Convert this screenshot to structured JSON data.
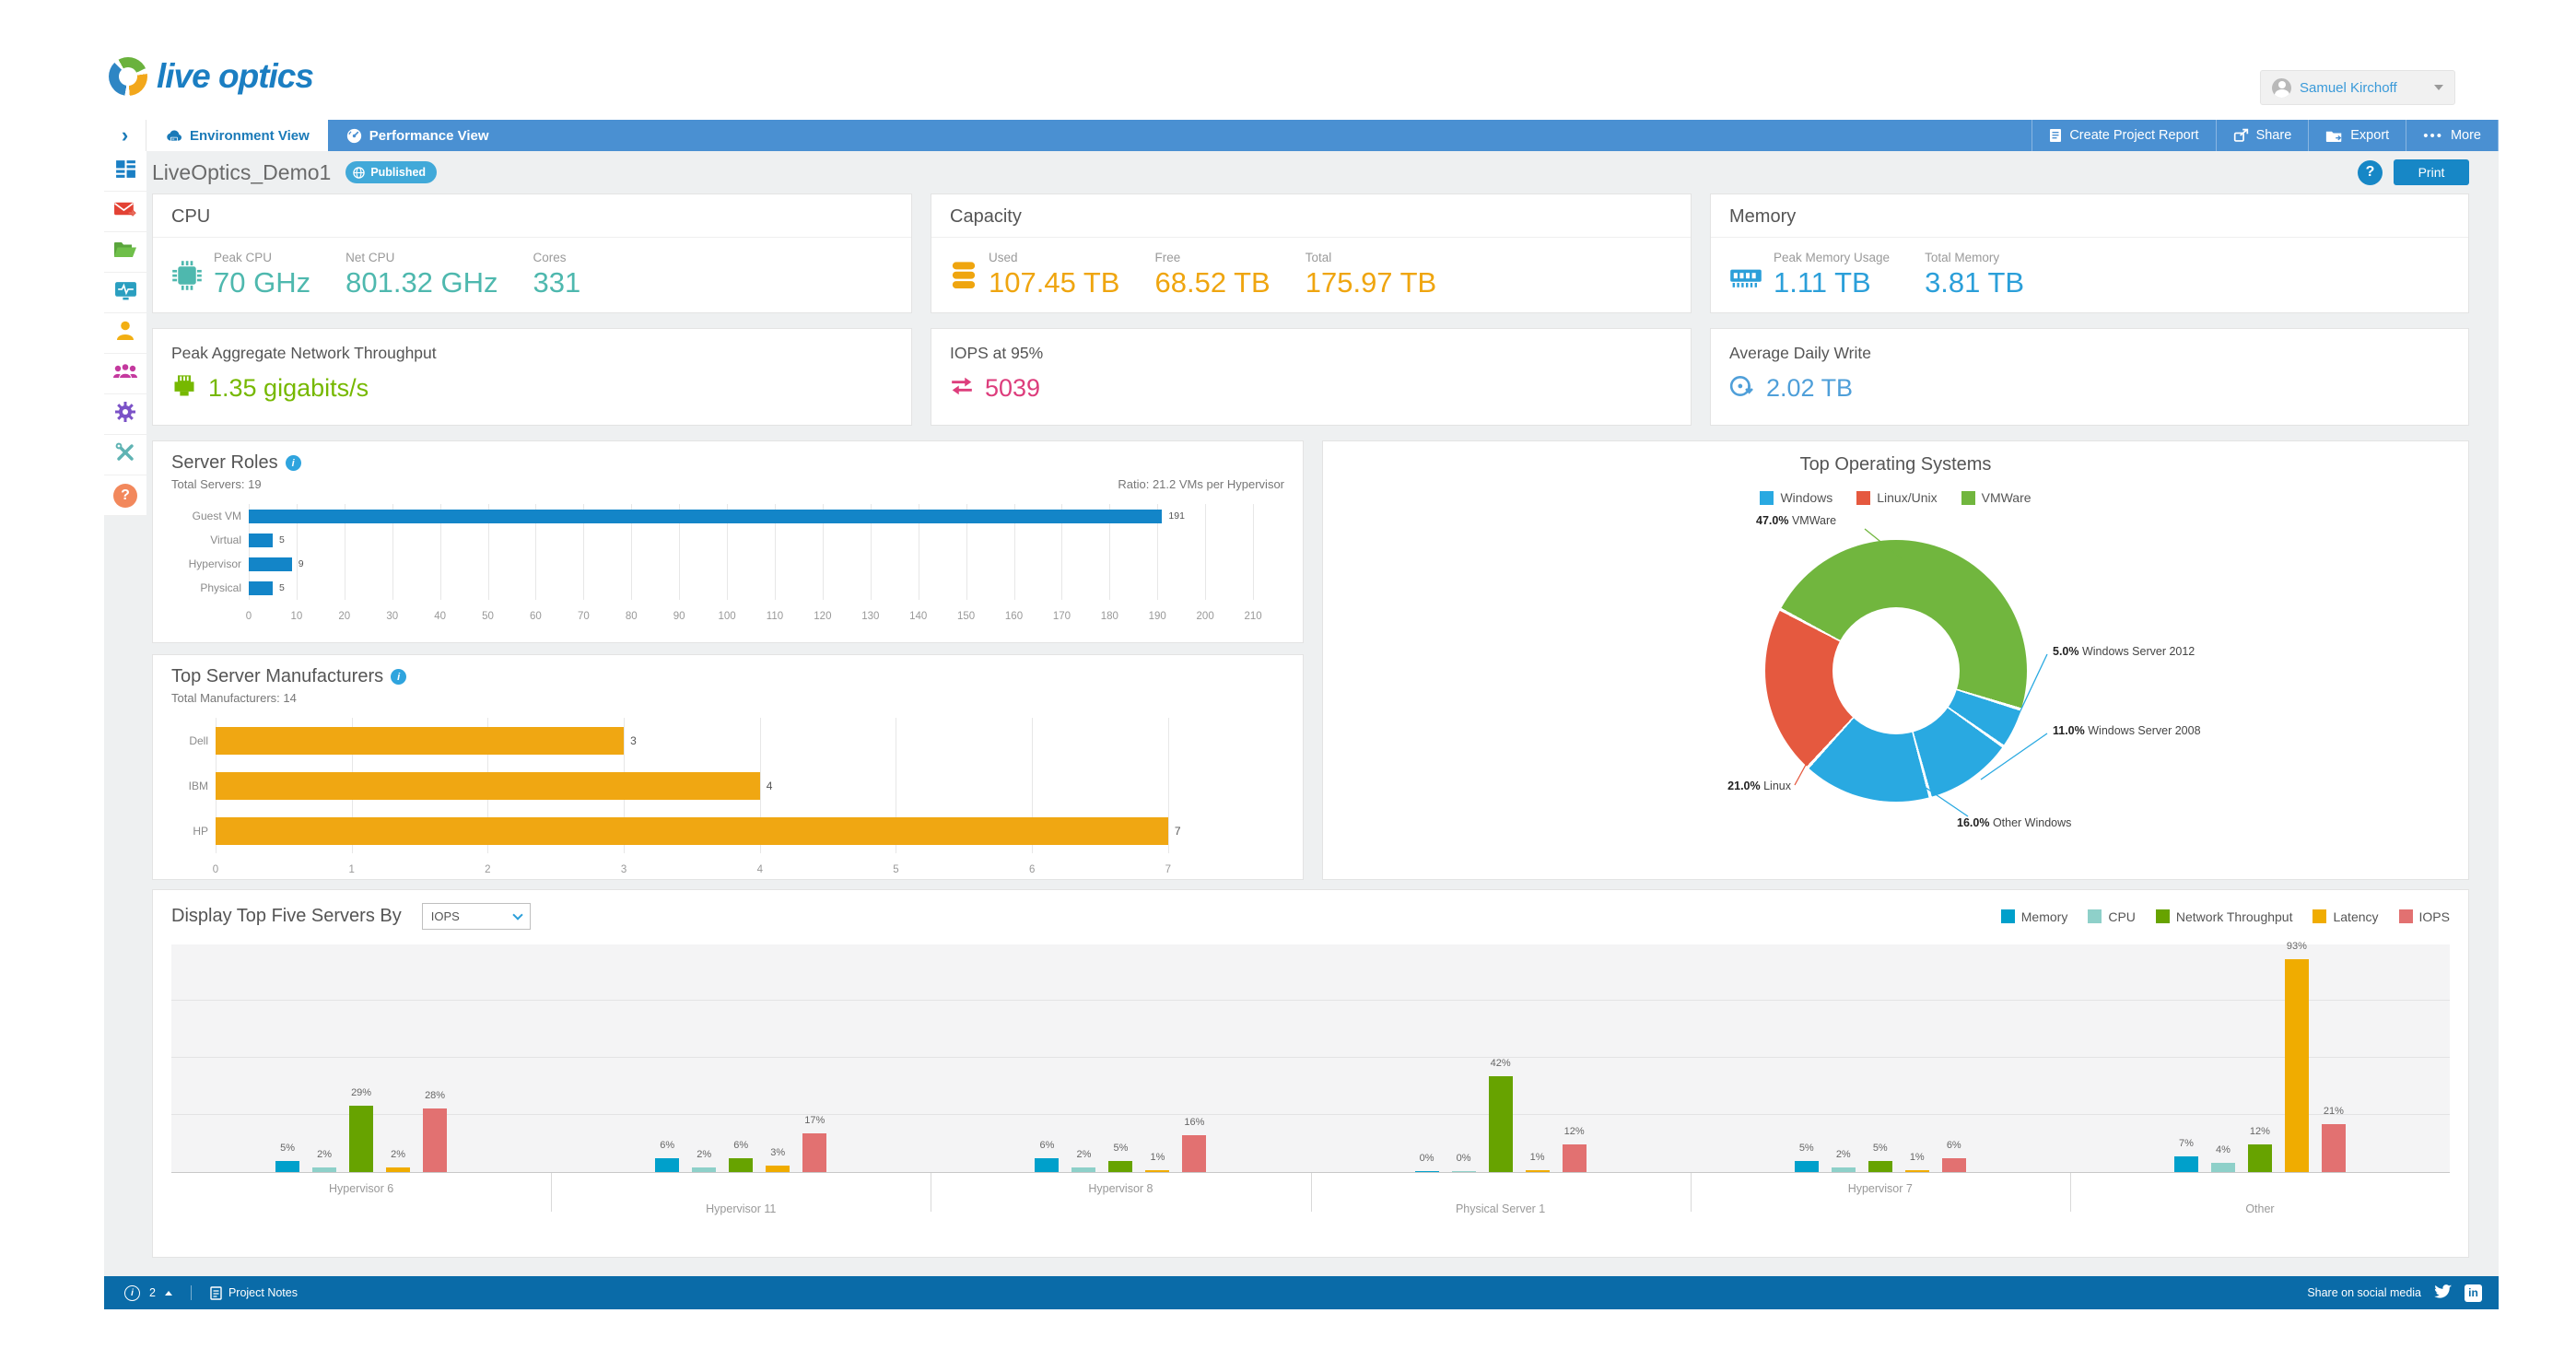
{
  "header": {
    "logo_text": "live optics",
    "user_name": "Samuel Kirchoff"
  },
  "nav": {
    "tabs": [
      {
        "label": "Environment View"
      },
      {
        "label": "Performance View"
      }
    ],
    "actions": [
      {
        "label": "Create Project Report"
      },
      {
        "label": "Share"
      },
      {
        "label": "Export"
      },
      {
        "label": "More"
      }
    ]
  },
  "page": {
    "title": "LiveOptics_Demo1",
    "status_badge": "Published",
    "print_label": "Print",
    "help_label": "?"
  },
  "sidebar": {
    "icons": [
      "dashboard",
      "mail-forward",
      "projects-folder",
      "system-monitor",
      "user",
      "team",
      "settings-gear",
      "admin-tools",
      "help"
    ]
  },
  "summary_cards": {
    "cpu": {
      "title": "CPU",
      "accent": "#4eb8ae",
      "metrics": [
        {
          "label": "Peak CPU",
          "value": "70 GHz"
        },
        {
          "label": "Net CPU",
          "value": "801.32 GHz"
        },
        {
          "label": "Cores",
          "value": "331"
        }
      ]
    },
    "capacity": {
      "title": "Capacity",
      "accent": "#efa50f",
      "metrics": [
        {
          "label": "Used",
          "value": "107.45 TB"
        },
        {
          "label": "Free",
          "value": "68.52 TB"
        },
        {
          "label": "Total",
          "value": "175.97 TB"
        }
      ]
    },
    "memory": {
      "title": "Memory",
      "accent": "#2b9fd9",
      "metrics": [
        {
          "label": "Peak Memory Usage",
          "value": "1.11 TB"
        },
        {
          "label": "Total Memory",
          "value": "3.81 TB"
        }
      ]
    }
  },
  "metric_cards": {
    "network": {
      "title": "Peak Aggregate Network Throughput",
      "value": "1.35 gigabits/s",
      "accent": "#76b800"
    },
    "iops": {
      "title": "IOPS at 95%",
      "value": "5039",
      "accent": "#dd3d7c"
    },
    "daily_write": {
      "title": "Average Daily Write",
      "value": "2.02 TB",
      "accent": "#4f9fd9"
    }
  },
  "chart_data": [
    {
      "id": "server_roles",
      "type": "bar",
      "orientation": "horizontal",
      "title": "Server Roles",
      "subtitle_left": "Total Servers: 19",
      "subtitle_right": "Ratio: 21.2 VMs per Hypervisor",
      "categories": [
        "Guest VM",
        "Virtual",
        "Hypervisor",
        "Physical"
      ],
      "values": [
        191,
        5,
        9,
        5
      ],
      "bar_color": "#1385c8",
      "xlim": [
        0,
        215
      ],
      "ticks": [
        0,
        10,
        20,
        30,
        40,
        50,
        60,
        70,
        80,
        90,
        100,
        110,
        120,
        130,
        140,
        150,
        160,
        170,
        180,
        190,
        200,
        210
      ],
      "grid": true,
      "legend_position": "none"
    },
    {
      "id": "top_manufacturers",
      "type": "bar",
      "orientation": "horizontal",
      "title": "Top Server Manufacturers",
      "subtitle_left": "Total Manufacturers: 14",
      "subtitle_right": "",
      "categories": [
        "Dell",
        "IBM",
        "HP"
      ],
      "values": [
        3,
        4,
        7
      ],
      "bar_color": "#f0a712",
      "xlim": [
        0,
        7.8
      ],
      "ticks": [
        0,
        1,
        2,
        3,
        4,
        5,
        6,
        7
      ],
      "grid": true,
      "legend_position": "none"
    },
    {
      "id": "top_operating_systems",
      "type": "pie",
      "donut": true,
      "title": "Top Operating Systems",
      "legend_position": "top",
      "legend": [
        {
          "label": "Windows",
          "color": "#29a9e1"
        },
        {
          "label": "Linux/Unix",
          "color": "#e5593f"
        },
        {
          "label": "VMWare",
          "color": "#71b63e"
        }
      ],
      "slices": [
        {
          "name": "VMWare",
          "pct": 47.0,
          "pct_label": "47.0%",
          "color": "#71b63e"
        },
        {
          "name": "Windows Server 2012",
          "pct": 5.0,
          "pct_label": "5.0%",
          "color": "#29a9e1"
        },
        {
          "name": "Windows Server 2008",
          "pct": 11.0,
          "pct_label": "11.0%",
          "color": "#29a9e1"
        },
        {
          "name": "Other Windows",
          "pct": 16.0,
          "pct_label": "16.0%",
          "color": "#29a9e1"
        },
        {
          "name": "Linux",
          "pct": 21.0,
          "pct_label": "21.0%",
          "color": "#e5593f"
        }
      ]
    },
    {
      "id": "top_servers",
      "type": "bar",
      "grouped": true,
      "control_label": "Display Top Five Servers By",
      "select_value": "IOPS",
      "legend_position": "top-right",
      "categories": [
        "Hypervisor 6",
        "Hypervisor 11",
        "Hypervisor 8",
        "Physical Server 1",
        "Hypervisor 7",
        "Other"
      ],
      "series": [
        {
          "name": "Memory",
          "color": "#00a0cb"
        },
        {
          "name": "CPU",
          "color": "#8ed0c9"
        },
        {
          "name": "Network Throughput",
          "color": "#67a300"
        },
        {
          "name": "Latency",
          "color": "#f0ac00"
        },
        {
          "name": "IOPS",
          "color": "#e27171"
        }
      ],
      "values_pct": [
        [
          5,
          2,
          29,
          2,
          28
        ],
        [
          6,
          2,
          6,
          3,
          17
        ],
        [
          6,
          2,
          5,
          1,
          16
        ],
        [
          0,
          0,
          42,
          1,
          12
        ],
        [
          5,
          2,
          5,
          1,
          6
        ],
        [
          7,
          4,
          12,
          93,
          21
        ]
      ],
      "ylim": [
        0,
        100
      ],
      "unit": "%",
      "grid": true
    }
  ],
  "footer": {
    "alerts_count": "2",
    "notes_label": "Project Notes",
    "share_label": "Share on social media"
  }
}
